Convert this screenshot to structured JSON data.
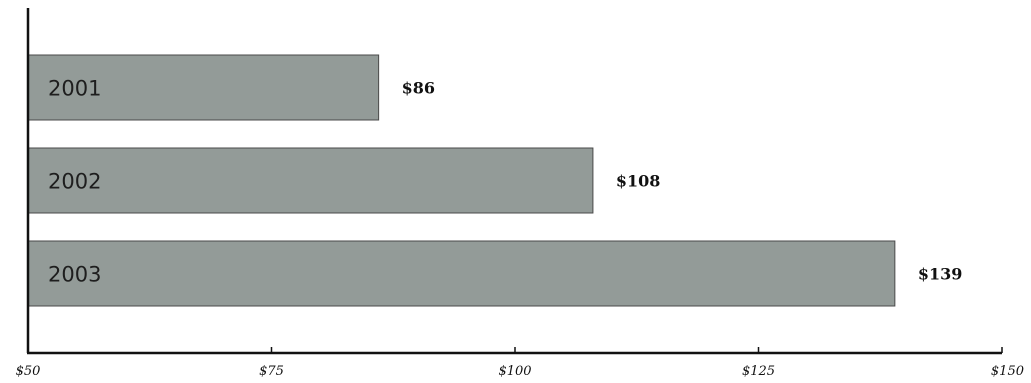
{
  "chart_data": {
    "type": "bar",
    "orientation": "horizontal",
    "title": "",
    "xlabel": "",
    "ylabel": "",
    "categories": [
      "2001",
      "2002",
      "2003"
    ],
    "values": [
      86,
      108,
      139
    ],
    "value_labels": [
      "$86",
      "$108",
      "$139"
    ],
    "xlim": [
      50,
      150
    ],
    "x_ticks": [
      50,
      75,
      100,
      125,
      150
    ],
    "x_tick_labels": [
      "$50",
      "$75",
      "$100",
      "$125",
      "$150"
    ],
    "category_labels_inside_bars": true,
    "grid": false,
    "legend": "none",
    "colors": {
      "bar_fill": "#939b98",
      "bar_stroke": "#4a4a4a",
      "axis": "#111111",
      "text": "#1e1e1e"
    }
  }
}
